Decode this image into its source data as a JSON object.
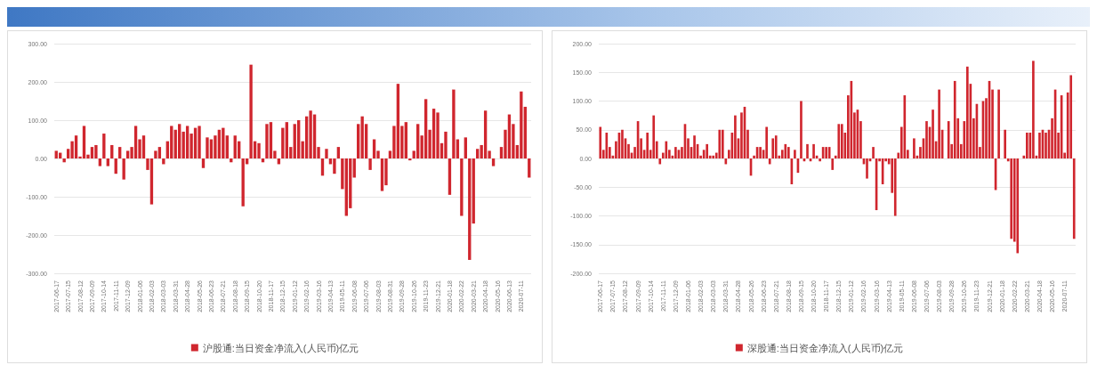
{
  "chart_data": [
    {
      "type": "bar",
      "legend": "bottom",
      "grid": "y",
      "ylim": [
        -300,
        300
      ],
      "yticks": [
        {
          "value": -300,
          "label": "-300.00"
        },
        {
          "value": -200,
          "label": "-200.00"
        },
        {
          "value": -100,
          "label": "-100.00"
        },
        {
          "value": 0,
          "label": "0.00"
        },
        {
          "value": 100,
          "label": "100.00"
        },
        {
          "value": 200,
          "label": "200.00"
        },
        {
          "value": 300,
          "label": "300.00"
        }
      ],
      "categories": [
        "2017-06-17",
        null,
        null,
        "2017-07-15",
        null,
        null,
        "2017-08-12",
        null,
        null,
        "2017-09-09",
        null,
        null,
        "2017-10-14",
        null,
        null,
        "2017-11-11",
        null,
        null,
        "2017-12-09",
        null,
        null,
        "2018-01-06",
        null,
        null,
        "2018-02-03",
        null,
        null,
        "2018-03-03",
        null,
        null,
        "2018-03-31",
        null,
        null,
        "2018-04-28",
        null,
        null,
        "2018-05-26",
        null,
        null,
        "2018-06-23",
        null,
        null,
        "2018-07-21",
        null,
        null,
        "2018-08-18",
        null,
        null,
        "2018-09-15",
        null,
        null,
        "2018-10-20",
        null,
        null,
        "2018-11-17",
        null,
        null,
        "2018-12-15",
        null,
        null,
        "2019-01-12",
        null,
        null,
        "2019-02-16",
        null,
        null,
        "2019-03-16",
        null,
        null,
        "2019-04-13",
        null,
        null,
        "2019-05-11",
        null,
        null,
        "2019-06-08",
        null,
        null,
        "2019-07-06",
        null,
        null,
        "2019-08-03",
        null,
        null,
        "2019-08-31",
        null,
        null,
        "2019-09-28",
        null,
        null,
        "2019-10-26",
        null,
        null,
        "2019-11-23",
        null,
        null,
        "2019-12-21",
        null,
        null,
        "2020-01-18",
        null,
        null,
        "2020-02-22",
        null,
        null,
        "2020-03-21",
        null,
        null,
        "2020-04-18",
        null,
        null,
        "2020-05-16",
        null,
        null,
        "2020-06-13",
        null,
        null,
        "2020-07-11",
        null,
        null
      ],
      "series": [
        {
          "name": "沪股通:当日资金净流入(人民币)亿元",
          "color": "#d0262e",
          "values": [
            20,
            15,
            -10,
            25,
            45,
            60,
            5,
            85,
            10,
            30,
            35,
            -20,
            65,
            -20,
            35,
            -40,
            30,
            -55,
            20,
            30,
            85,
            50,
            60,
            -30,
            -120,
            20,
            30,
            -15,
            45,
            85,
            75,
            90,
            70,
            85,
            65,
            80,
            85,
            -25,
            55,
            50,
            60,
            75,
            80,
            60,
            -10,
            60,
            45,
            -125,
            -15,
            245,
            45,
            40,
            -10,
            90,
            95,
            20,
            -15,
            80,
            95,
            30,
            90,
            100,
            45,
            110,
            125,
            115,
            30,
            -45,
            25,
            -15,
            -40,
            30,
            -80,
            -150,
            -130,
            -50,
            90,
            110,
            90,
            -30,
            50,
            20,
            -85,
            -70,
            20,
            85,
            195,
            85,
            95,
            -5,
            20,
            90,
            60,
            155,
            75,
            130,
            120,
            40,
            70,
            -95,
            180,
            50,
            -150,
            55,
            -265,
            -170,
            25,
            35,
            125,
            20,
            -20,
            0,
            30,
            75,
            115,
            90,
            35,
            175,
            135,
            -50
          ]
        }
      ]
    },
    {
      "type": "bar",
      "legend": "bottom",
      "grid": "y",
      "ylim": [
        -200,
        200
      ],
      "yticks": [
        {
          "value": -200,
          "label": "-200.00"
        },
        {
          "value": -150,
          "label": "-150.00"
        },
        {
          "value": -100,
          "label": "-100.00"
        },
        {
          "value": -50,
          "label": "-50.00"
        },
        {
          "value": 0,
          "label": "0.00"
        },
        {
          "value": 50,
          "label": "50.00"
        },
        {
          "value": 100,
          "label": "100.00"
        },
        {
          "value": 150,
          "label": "150.00"
        },
        {
          "value": 200,
          "label": "200.00"
        }
      ],
      "categories": [
        "2017-06-17",
        null,
        null,
        null,
        "2017-07-15",
        null,
        null,
        null,
        "2017-08-12",
        null,
        null,
        null,
        "2017-09-09",
        null,
        null,
        null,
        "2017-10-14",
        null,
        null,
        null,
        "2017-11-11",
        null,
        null,
        null,
        "2017-12-09",
        null,
        null,
        null,
        "2018-01-06",
        null,
        null,
        null,
        "2018-02-03",
        null,
        null,
        null,
        "2018-03-03",
        null,
        null,
        null,
        "2018-03-31",
        null,
        null,
        null,
        "2018-04-28",
        null,
        null,
        null,
        "2018-05-26",
        null,
        null,
        null,
        "2018-06-23",
        null,
        null,
        null,
        "2018-07-21",
        null,
        null,
        null,
        "2018-08-18",
        null,
        null,
        null,
        "2018-09-15",
        null,
        null,
        null,
        "2018-10-20",
        null,
        null,
        null,
        "2018-11-17",
        null,
        null,
        null,
        "2018-12-15",
        null,
        null,
        null,
        "2019-01-12",
        null,
        null,
        null,
        "2019-02-16",
        null,
        null,
        null,
        "2019-03-16",
        null,
        null,
        null,
        "2019-04-13",
        null,
        null,
        null,
        "2019-05-11",
        null,
        null,
        null,
        "2019-06-08",
        null,
        null,
        null,
        "2019-07-06",
        null,
        null,
        null,
        "2019-08-03",
        null,
        null,
        null,
        "2019-09-28",
        null,
        null,
        null,
        "2019-10-26",
        null,
        null,
        null,
        "2019-11-23",
        null,
        null,
        null,
        "2019-12-21",
        null,
        null,
        null,
        "2020-01-18",
        null,
        null,
        null,
        "2020-02-22",
        null,
        null,
        null,
        "2020-03-21",
        null,
        null,
        null,
        "2020-04-18",
        null,
        null,
        null,
        "2020-05-16",
        null,
        null,
        null,
        "2020-07-11",
        null,
        null,
        null
      ],
      "series": [
        {
          "name": "深股通:当日资金净流入(人民币)亿元",
          "color": "#d0262e",
          "values": [
            55,
            15,
            45,
            20,
            5,
            30,
            45,
            50,
            35,
            25,
            10,
            20,
            65,
            35,
            15,
            45,
            15,
            75,
            30,
            -10,
            10,
            30,
            15,
            5,
            20,
            15,
            20,
            60,
            35,
            20,
            40,
            25,
            5,
            15,
            25,
            5,
            5,
            10,
            50,
            50,
            -10,
            15,
            45,
            75,
            35,
            80,
            90,
            50,
            -30,
            5,
            20,
            20,
            15,
            55,
            -10,
            35,
            40,
            5,
            15,
            25,
            20,
            -45,
            15,
            -25,
            100,
            -5,
            25,
            -5,
            25,
            5,
            -5,
            20,
            20,
            20,
            -20,
            5,
            60,
            60,
            45,
            110,
            135,
            80,
            85,
            65,
            -10,
            -35,
            -5,
            20,
            -90,
            -5,
            -45,
            -5,
            -10,
            -60,
            -100,
            10,
            55,
            110,
            15,
            0,
            35,
            5,
            20,
            35,
            65,
            55,
            85,
            30,
            120,
            50,
            0,
            65,
            25,
            135,
            70,
            25,
            65,
            160,
            130,
            70,
            95,
            20,
            100,
            105,
            135,
            120,
            -55,
            120,
            0,
            50,
            -5,
            -140,
            -145,
            -165,
            0,
            5,
            45,
            45,
            170,
            5,
            45,
            50,
            45,
            50,
            70,
            120,
            45,
            110,
            10,
            115,
            145,
            -140
          ]
        }
      ]
    }
  ]
}
